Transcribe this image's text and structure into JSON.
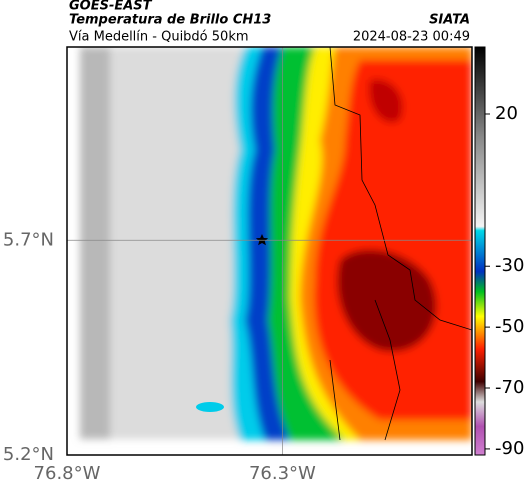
{
  "header": {
    "source": "GOES-EAST",
    "title": "Temperatura de Brillo CH13",
    "credit": "SIATA",
    "route": "Vía Medellín - Quibdó 50km",
    "timestamp": "2024-08-23 00:49"
  },
  "map": {
    "xlim": [
      -76.8,
      -75.86
    ],
    "ylim": [
      5.2,
      6.15
    ],
    "xticks": [
      {
        "value": -76.8,
        "label": "76.8°W"
      },
      {
        "value": -76.3,
        "label": "76.3°W"
      }
    ],
    "yticks": [
      {
        "value": 5.7,
        "label": "5.7°N"
      },
      {
        "value": 5.2,
        "label": "5.2°N"
      }
    ],
    "grid": true
  },
  "colorbar": {
    "lim": [
      -92,
      42
    ],
    "ticks": [
      20,
      -30,
      -50,
      -70,
      -90
    ]
  }
}
